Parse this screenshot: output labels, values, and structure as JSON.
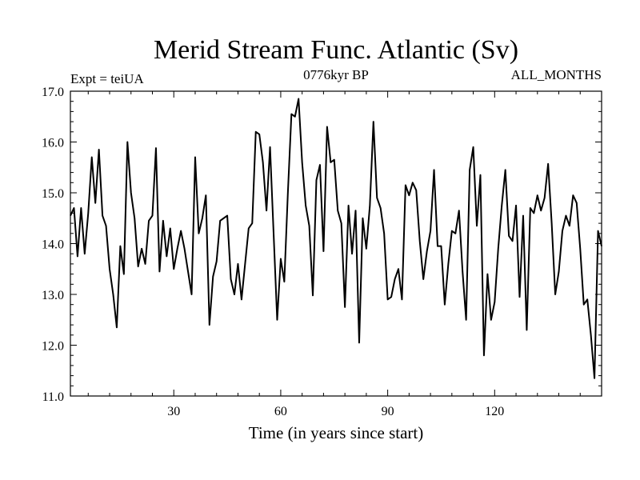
{
  "chart_data": {
    "type": "line",
    "title": "Merid Stream Func. Atlantic (Sv)",
    "subtitle_left": "Expt = teiUA",
    "subtitle_center": "0776kyr BP",
    "subtitle_right": "ALL_MONTHS",
    "xlabel": "Time (in years since start)",
    "ylabel": "",
    "xlim": [
      1,
      150
    ],
    "ylim": [
      11.0,
      17.0
    ],
    "x_ticks": [
      30,
      60,
      90,
      120
    ],
    "x_tick_labels": [
      "30",
      "60",
      "90",
      "120"
    ],
    "y_ticks": [
      11.0,
      12.0,
      13.0,
      14.0,
      15.0,
      16.0,
      17.0
    ],
    "y_tick_labels": [
      "11.0",
      "12.0",
      "13.0",
      "14.0",
      "15.0",
      "16.0",
      "17.0"
    ],
    "grid": false,
    "series": [
      {
        "name": "Merid Stream Func. Atlantic",
        "color": "#000000",
        "values": [
          14.55,
          14.7,
          13.75,
          14.7,
          13.8,
          14.6,
          15.7,
          14.8,
          15.85,
          14.55,
          14.35,
          13.5,
          13.0,
          12.35,
          13.95,
          13.4,
          16.0,
          15.0,
          14.5,
          13.55,
          13.9,
          13.6,
          14.45,
          14.55,
          15.88,
          13.45,
          14.45,
          13.75,
          14.3,
          13.5,
          13.9,
          14.25,
          13.9,
          13.45,
          13.0,
          15.7,
          14.2,
          14.5,
          14.95,
          12.4,
          13.35,
          13.65,
          14.45,
          14.5,
          14.55,
          13.3,
          13.0,
          13.6,
          12.9,
          13.6,
          14.3,
          14.4,
          16.2,
          16.15,
          15.6,
          14.65,
          15.9,
          14.2,
          12.5,
          13.7,
          13.25,
          15.0,
          16.55,
          16.5,
          16.85,
          15.6,
          14.75,
          14.35,
          12.98,
          15.25,
          15.55,
          13.85,
          16.3,
          15.6,
          15.65,
          14.65,
          14.4,
          12.75,
          14.75,
          13.8,
          14.65,
          12.05,
          14.5,
          13.9,
          14.75,
          16.4,
          14.9,
          14.7,
          14.2,
          12.9,
          12.95,
          13.3,
          13.5,
          12.9,
          15.15,
          14.95,
          15.2,
          15.05,
          14.05,
          13.3,
          13.85,
          14.25,
          15.45,
          13.95,
          13.95,
          12.8,
          13.6,
          14.25,
          14.2,
          14.65,
          13.45,
          12.5,
          15.45,
          15.9,
          14.35,
          15.35,
          11.8,
          13.4,
          12.5,
          12.85,
          13.9,
          14.75,
          15.45,
          14.15,
          14.05,
          14.75,
          12.95,
          14.55,
          12.3,
          14.7,
          14.6,
          14.95,
          14.65,
          14.9,
          15.57,
          14.4,
          13.0,
          13.45,
          14.25,
          14.55,
          14.35,
          14.95,
          14.8,
          13.9,
          12.8,
          12.9,
          12.2,
          11.35,
          14.25,
          13.95
        ]
      }
    ]
  }
}
